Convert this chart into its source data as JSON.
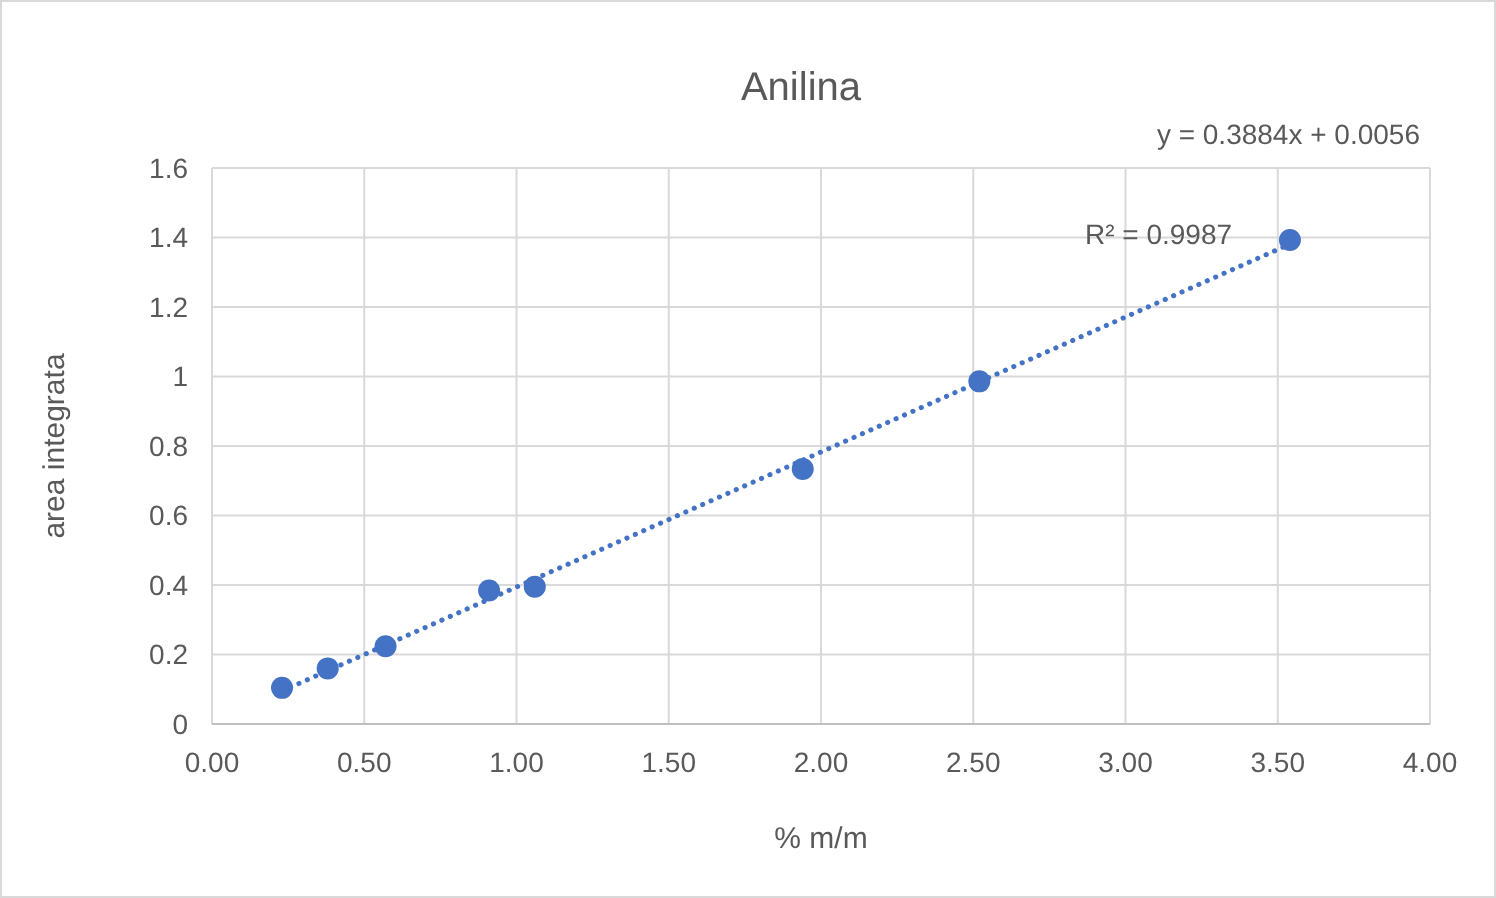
{
  "chart_data": {
    "type": "scatter",
    "title": "Anilina",
    "xlabel": "% m/m",
    "ylabel": "area integrata",
    "xlim": [
      0,
      4
    ],
    "xticks": [
      {
        "value": 0,
        "label": "0.00"
      },
      {
        "value": 0.5,
        "label": "0.50"
      },
      {
        "value": 1,
        "label": "1.00"
      },
      {
        "value": 1.5,
        "label": "1.50"
      },
      {
        "value": 2,
        "label": "2.00"
      },
      {
        "value": 2.5,
        "label": "2.50"
      },
      {
        "value": 3,
        "label": "3.00"
      },
      {
        "value": 3.5,
        "label": "3.50"
      },
      {
        "value": 4,
        "label": "4.00"
      }
    ],
    "ylim": [
      0,
      1.6
    ],
    "yticks": [
      0,
      0.2,
      0.4,
      0.6,
      0.8,
      1,
      1.2,
      1.4,
      1.6
    ],
    "grid": true,
    "series": [
      {
        "color": "#4472c4",
        "marker": "circle",
        "x": [
          0.23,
          0.38,
          0.57,
          0.91,
          1.06,
          1.94,
          2.52,
          3.54
        ],
        "values": [
          0.104,
          0.16,
          0.224,
          0.384,
          0.395,
          0.734,
          0.986,
          1.393
        ]
      },
      {
        "type": "line",
        "color": "#4472c4",
        "line_style": "dotted",
        "marker": "none",
        "x": [
          0.23,
          3.54
        ],
        "values": [
          0.095,
          1.381
        ]
      }
    ],
    "annotations": [
      "y = 0.3884x + 0.0056",
      "R² = 0.9987"
    ]
  }
}
